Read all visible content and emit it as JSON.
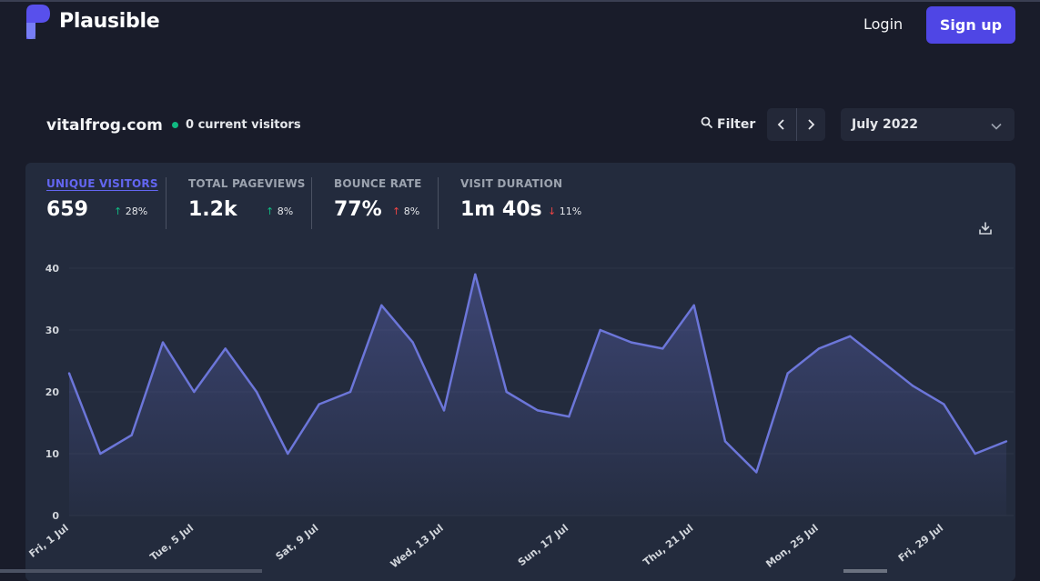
{
  "brand": {
    "name": "Plausible",
    "accent": "#4f46e5",
    "logo_icon": "plausible-logo-icon"
  },
  "header": {
    "login": "Login",
    "signup": "Sign up"
  },
  "site": {
    "domain": "vitalfrog.com",
    "current_visitors": "0 current visitors",
    "live_color": "#10b981"
  },
  "controls": {
    "filter": "Filter",
    "prev_icon": "chevron-left-icon",
    "next_icon": "chevron-right-icon",
    "period": "July 2022",
    "period_icon": "chevron-down-icon"
  },
  "stats": [
    {
      "label": "UNIQUE VISITORS",
      "value": "659",
      "change": "28%",
      "direction": "up",
      "active": true
    },
    {
      "label": "TOTAL PAGEVIEWS",
      "value": "1.2k",
      "change": "8%",
      "direction": "up"
    },
    {
      "label": "BOUNCE RATE",
      "value": "77%",
      "change": "8%",
      "direction": "up"
    },
    {
      "label": "VISIT DURATION",
      "value": "1m 40s",
      "change": "11%",
      "direction": "down"
    }
  ],
  "chart_data": {
    "type": "area",
    "x": [
      "1 Jul",
      "2 Jul",
      "3 Jul",
      "4 Jul",
      "5 Jul",
      "6 Jul",
      "7 Jul",
      "8 Jul",
      "9 Jul",
      "10 Jul",
      "11 Jul",
      "12 Jul",
      "13 Jul",
      "14 Jul",
      "15 Jul",
      "16 Jul",
      "17 Jul",
      "18 Jul",
      "19 Jul",
      "20 Jul",
      "21 Jul",
      "22 Jul",
      "23 Jul",
      "24 Jul",
      "25 Jul",
      "26 Jul",
      "27 Jul",
      "28 Jul",
      "29 Jul",
      "30 Jul",
      "31 Jul"
    ],
    "series": [
      {
        "values": [
          23,
          10,
          13,
          28,
          20,
          27,
          20,
          10,
          18,
          20,
          34,
          28,
          17,
          39,
          20,
          17,
          16,
          30,
          28,
          27,
          34,
          12,
          7,
          23,
          27,
          29,
          25,
          21,
          18,
          10,
          12
        ]
      }
    ],
    "x_tick_labels": [
      "Fri, 1 Jul",
      "Tue, 5 Jul",
      "Sat, 9 Jul",
      "Wed, 13 Jul",
      "Sun, 17 Jul",
      "Thu, 21 Jul",
      "Mon, 25 Jul",
      "Fri, 29 Jul"
    ],
    "y_ticks": [
      "0",
      "10",
      "20",
      "30",
      "40"
    ],
    "ylim": [
      0,
      40
    ],
    "grid": true,
    "line_color": "#6c76d9"
  }
}
